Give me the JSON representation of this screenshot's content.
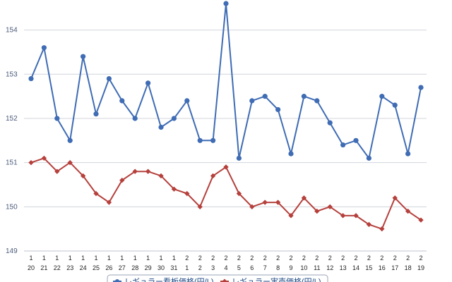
{
  "chart_data": {
    "type": "line",
    "title": "",
    "xlabel": "",
    "ylabel": "",
    "ylim": [
      149,
      154.6
    ],
    "yticks": [
      "149",
      "150",
      "151",
      "152",
      "153",
      "154"
    ],
    "categories": [
      {
        "top": "1",
        "bottom": "20"
      },
      {
        "top": "1",
        "bottom": "21"
      },
      {
        "top": "1",
        "bottom": "22"
      },
      {
        "top": "1",
        "bottom": "23"
      },
      {
        "top": "1",
        "bottom": "24"
      },
      {
        "top": "1",
        "bottom": "25"
      },
      {
        "top": "1",
        "bottom": "26"
      },
      {
        "top": "1",
        "bottom": "27"
      },
      {
        "top": "1",
        "bottom": "28"
      },
      {
        "top": "1",
        "bottom": "29"
      },
      {
        "top": "1",
        "bottom": "30"
      },
      {
        "top": "1",
        "bottom": "31"
      },
      {
        "top": "2",
        "bottom": "1"
      },
      {
        "top": "2",
        "bottom": "2"
      },
      {
        "top": "2",
        "bottom": "3"
      },
      {
        "top": "2",
        "bottom": "4"
      },
      {
        "top": "2",
        "bottom": "5"
      },
      {
        "top": "2",
        "bottom": "6"
      },
      {
        "top": "2",
        "bottom": "7"
      },
      {
        "top": "2",
        "bottom": "8"
      },
      {
        "top": "2",
        "bottom": "9"
      },
      {
        "top": "2",
        "bottom": "10"
      },
      {
        "top": "2",
        "bottom": "11"
      },
      {
        "top": "2",
        "bottom": "12"
      },
      {
        "top": "2",
        "bottom": "13"
      },
      {
        "top": "2",
        "bottom": "14"
      },
      {
        "top": "2",
        "bottom": "15"
      },
      {
        "top": "2",
        "bottom": "16"
      },
      {
        "top": "2",
        "bottom": "17"
      },
      {
        "top": "2",
        "bottom": "18"
      },
      {
        "top": "2",
        "bottom": "19"
      }
    ],
    "series": [
      {
        "name": "レギュラー看板価格(円/L)",
        "color": "#3f6cb4",
        "marker": "circle",
        "values": [
          152.9,
          153.6,
          152.0,
          151.5,
          153.4,
          152.1,
          152.9,
          152.4,
          152.0,
          152.8,
          151.8,
          152.0,
          152.4,
          151.5,
          151.5,
          154.6,
          151.1,
          152.4,
          152.5,
          152.2,
          151.2,
          152.5,
          152.4,
          151.9,
          151.4,
          151.5,
          151.1,
          152.5,
          152.3,
          151.2,
          152.7
        ]
      },
      {
        "name": "レギュラー実売価格(円/L)",
        "color": "#b5403c",
        "marker": "diamond",
        "values": [
          151.0,
          151.1,
          150.8,
          151.0,
          150.7,
          150.3,
          150.1,
          150.6,
          150.8,
          150.8,
          150.7,
          150.4,
          150.3,
          150.0,
          150.7,
          150.9,
          150.3,
          150.0,
          150.1,
          150.1,
          149.8,
          150.2,
          149.9,
          150.0,
          149.8,
          149.8,
          149.6,
          149.5,
          150.2,
          149.9,
          149.7
        ]
      }
    ],
    "grid": true,
    "legend": "bottom"
  }
}
